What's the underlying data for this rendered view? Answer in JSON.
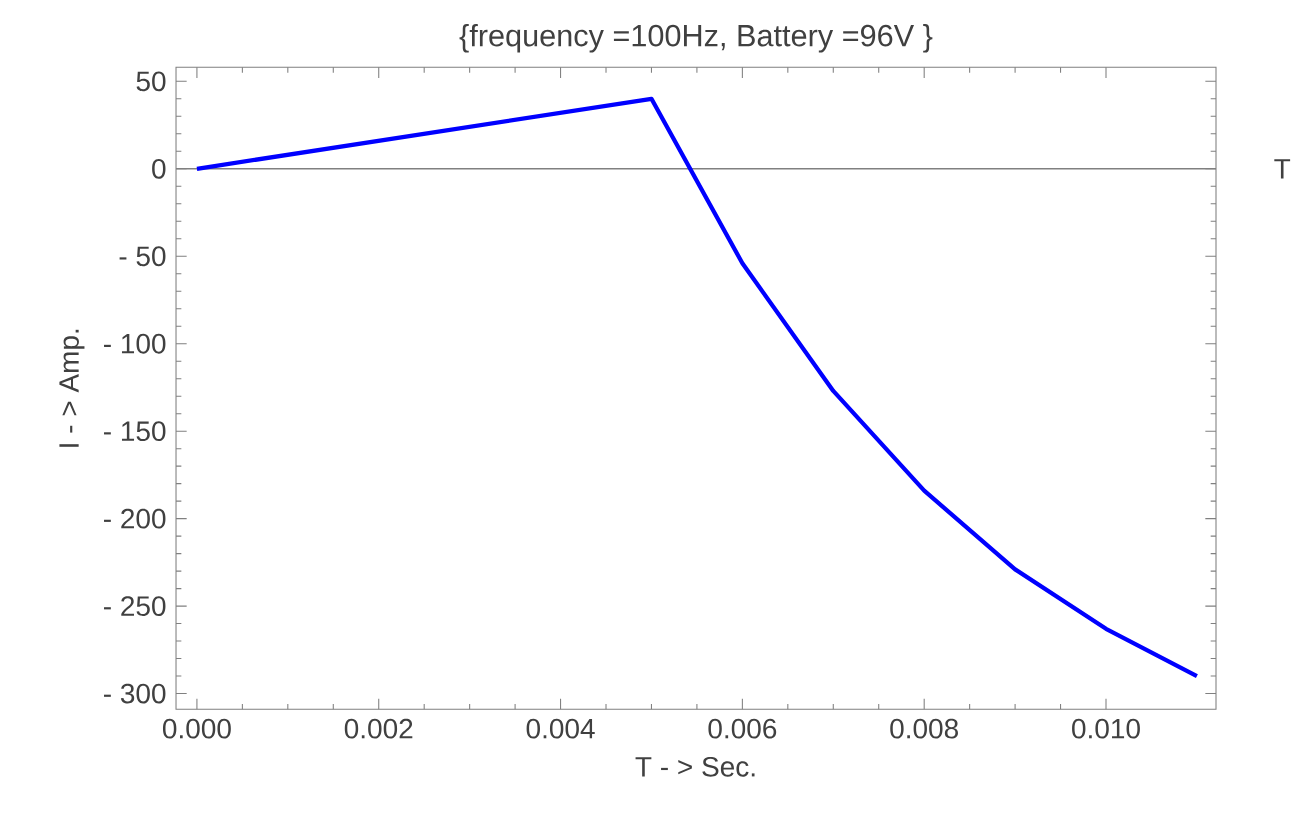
{
  "chart_data": {
    "type": "line",
    "title": "{frequency =100Hz, Battery =96V }",
    "xlabel": "T - > Sec.",
    "ylabel": "I - > Amp.",
    "x": [
      0,
      0.005,
      0.006,
      0.007,
      0.008,
      0.009,
      0.01,
      0.011
    ],
    "series": [
      {
        "color": "#0000ff",
        "values": [
          0,
          40,
          -54,
          -127,
          -184,
          -229,
          -263,
          -290
        ]
      }
    ],
    "xlim": [
      -0.00023,
      0.01121
    ],
    "ylim": [
      -309,
      58
    ],
    "xticks": [
      {
        "value": 0,
        "label": "0.000"
      },
      {
        "value": 0.002,
        "label": "0.002"
      },
      {
        "value": 0.004,
        "label": "0.004"
      },
      {
        "value": 0.006,
        "label": "0.006"
      },
      {
        "value": 0.008,
        "label": "0.008"
      },
      {
        "value": 0.01,
        "label": "0.010"
      }
    ],
    "yticks": [
      50,
      0,
      {
        "value": -50,
        "label": "- 50"
      },
      {
        "value": -100,
        "label": "- 100"
      },
      {
        "value": -150,
        "label": "- 150"
      },
      {
        "value": -200,
        "label": "- 200"
      },
      {
        "value": -250,
        "label": "- 250"
      },
      {
        "value": -300,
        "label": "- 300"
      }
    ],
    "ref_lines": [
      {
        "axis": "y",
        "value": 0,
        "label": "T",
        "color": "#808080"
      }
    ],
    "grid": false,
    "legend": false,
    "marker": "none",
    "line_style": "solid"
  }
}
